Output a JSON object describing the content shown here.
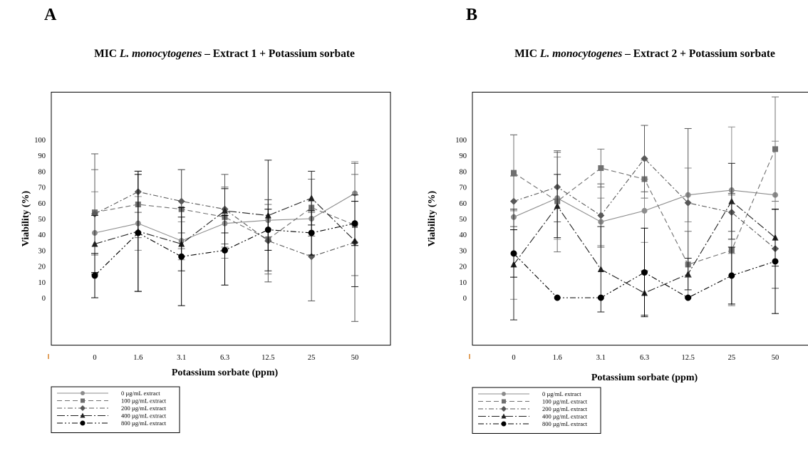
{
  "colors": {
    "0 µg/mL extract": "#8c8c8c",
    "100 µg/mL extract": "#707070",
    "200 µg/mL extract": "#585858",
    "400 µg/mL extract": "#202020",
    "800 µg/mL extract": "#000000",
    "tick_origin_mark": "#d9822b"
  },
  "chart_data": [
    {
      "panel": "A",
      "type": "line",
      "title_prefix": "MIC ",
      "title_italic": "L. monocytogenes",
      "title_suffix": " – Extract 1 + Potassium sorbate",
      "xlabel": "Potassium sorbate (ppm)",
      "ylabel": "Viability (%)",
      "categories": [
        "0",
        "1.6",
        "3.1",
        "6.3",
        "12.5",
        "25",
        "50"
      ],
      "yticks": [
        0,
        10,
        20,
        30,
        40,
        50,
        60,
        70,
        80,
        90,
        100
      ],
      "ylim": [
        -30,
        130
      ],
      "grid": false,
      "legend_position": "bottom-left",
      "series": [
        {
          "name": "0 µg/mL extract",
          "marker": "circle",
          "dash": "solid",
          "values": [
            41,
            47,
            36,
            47,
            49,
            50,
            66
          ],
          "errors": [
            26,
            17,
            12,
            22,
            13,
            11,
            20
          ]
        },
        {
          "name": "100 µg/mL extract",
          "marker": "square",
          "dash": "dashed",
          "values": [
            54,
            59,
            56,
            51,
            37,
            57,
            46
          ],
          "errors": [
            27,
            21,
            25,
            19,
            22,
            18,
            32
          ]
        },
        {
          "name": "200 µg/mL extract",
          "marker": "diamond",
          "dash": "dashdot",
          "values": [
            53,
            67,
            61,
            56,
            36,
            26,
            35
          ],
          "errors": [
            38,
            13,
            20,
            22,
            26,
            28,
            50
          ]
        },
        {
          "name": "400 µg/mL extract",
          "marker": "triangle",
          "dash": "longdashdot",
          "values": [
            34,
            42,
            34,
            55,
            52,
            63,
            36
          ],
          "errors": [
            18,
            38,
            17,
            14,
            35,
            17,
            29
          ]
        },
        {
          "name": "800 µg/mL extract",
          "marker": "circle-filled",
          "dash": "dashdotdot",
          "values": [
            14,
            41,
            26,
            30,
            43,
            41,
            47
          ],
          "errors": [
            14,
            37,
            31,
            22,
            13,
            14,
            14
          ]
        }
      ]
    },
    {
      "panel": "B",
      "type": "line",
      "title_prefix": "MIC ",
      "title_italic": "L. monocytogenes",
      "title_suffix": " – Extract 2 + Potassium sorbate",
      "xlabel": "Potassium sorbate (ppm)",
      "ylabel": "Viability (%)",
      "categories": [
        "0",
        "1.6",
        "3.1",
        "6.3",
        "12.5",
        "25",
        "50"
      ],
      "yticks": [
        0,
        10,
        20,
        30,
        40,
        50,
        60,
        70,
        80,
        90,
        100
      ],
      "ylim": [
        -30,
        130
      ],
      "grid": false,
      "legend_position": "bottom-left",
      "series": [
        {
          "name": "0 µg/mL extract",
          "marker": "circle",
          "dash": "solid",
          "values": [
            51,
            63,
            48,
            55,
            65,
            68,
            65
          ],
          "errors": [
            52,
            26,
            15,
            20,
            17,
            40,
            34
          ]
        },
        {
          "name": "100 µg/mL extract",
          "marker": "square",
          "dash": "dashed",
          "values": [
            79,
            61,
            82,
            75,
            21,
            30,
            94
          ],
          "errors": [
            24,
            32,
            12,
            12,
            21,
            35,
            33
          ]
        },
        {
          "name": "200 µg/mL extract",
          "marker": "diamond",
          "dash": "dashdot",
          "values": [
            61,
            70,
            52,
            88,
            60,
            54,
            31
          ],
          "errors": [
            16,
            22,
            20,
            21,
            47,
            12,
            25
          ]
        },
        {
          "name": "400 µg/mL extract",
          "marker": "triangle",
          "dash": "longdashdot",
          "values": [
            21,
            58,
            18,
            3,
            15,
            61,
            38
          ],
          "errors": [
            35,
            20,
            27,
            14,
            10,
            24,
            18
          ]
        },
        {
          "name": "800 µg/mL extract",
          "marker": "circle-filled",
          "dash": "dashdotdot",
          "values": [
            28,
            0,
            0,
            16,
            0,
            14,
            23
          ],
          "errors": [
            15,
            0,
            0,
            28,
            0,
            18,
            33
          ]
        }
      ]
    }
  ]
}
